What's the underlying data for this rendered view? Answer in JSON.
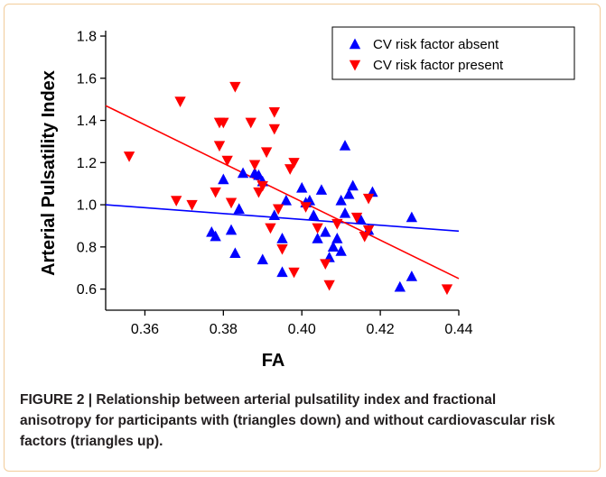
{
  "chart_data": {
    "type": "scatter",
    "xlabel": "FA",
    "ylabel": "Arterial Pulsatility Index",
    "xlim": [
      0.35,
      0.44
    ],
    "ylim": [
      0.5,
      1.8
    ],
    "xticks": [
      0.36,
      0.38,
      0.4,
      0.42,
      0.44
    ],
    "xtick_labels": [
      "0.36",
      "0.38",
      "0.40",
      "0.42",
      "0.44"
    ],
    "yticks": [
      0.6,
      0.8,
      1.0,
      1.2,
      1.4,
      1.6,
      1.8
    ],
    "ytick_labels": [
      "0.6",
      "0.8",
      "1.0",
      "1.2",
      "1.4",
      "1.6",
      "1.8"
    ],
    "grid": false,
    "legend_position": "top-right",
    "series": [
      {
        "name": "CV risk factor absent",
        "marker": "triangle-up",
        "color": "#0000ff",
        "trendline": {
          "x": [
            0.35,
            0.44
          ],
          "y": [
            1.0,
            0.875
          ]
        },
        "points": [
          [
            0.377,
            0.87
          ],
          [
            0.378,
            0.85
          ],
          [
            0.38,
            1.12
          ],
          [
            0.382,
            0.88
          ],
          [
            0.383,
            0.77
          ],
          [
            0.384,
            0.98
          ],
          [
            0.385,
            1.15
          ],
          [
            0.388,
            1.15
          ],
          [
            0.389,
            1.14
          ],
          [
            0.39,
            1.11
          ],
          [
            0.39,
            0.74
          ],
          [
            0.393,
            0.95
          ],
          [
            0.395,
            0.84
          ],
          [
            0.396,
            1.02
          ],
          [
            0.395,
            0.68
          ],
          [
            0.4,
            1.08
          ],
          [
            0.401,
            1.01
          ],
          [
            0.402,
            1.02
          ],
          [
            0.403,
            0.95
          ],
          [
            0.404,
            0.84
          ],
          [
            0.405,
            1.07
          ],
          [
            0.406,
            0.87
          ],
          [
            0.407,
            0.75
          ],
          [
            0.408,
            0.8
          ],
          [
            0.409,
            0.84
          ],
          [
            0.41,
            1.02
          ],
          [
            0.41,
            0.78
          ],
          [
            0.411,
            1.28
          ],
          [
            0.411,
            0.96
          ],
          [
            0.412,
            1.05
          ],
          [
            0.413,
            1.09
          ],
          [
            0.415,
            0.93
          ],
          [
            0.417,
            0.88
          ],
          [
            0.418,
            1.06
          ],
          [
            0.425,
            0.61
          ],
          [
            0.428,
            0.94
          ],
          [
            0.428,
            0.66
          ]
        ]
      },
      {
        "name": "CV risk factor present",
        "marker": "triangle-down",
        "color": "#ff0000",
        "trendline": {
          "x": [
            0.35,
            0.44
          ],
          "y": [
            1.47,
            0.65
          ]
        },
        "points": [
          [
            0.356,
            1.23
          ],
          [
            0.368,
            1.02
          ],
          [
            0.369,
            1.49
          ],
          [
            0.372,
            1.0
          ],
          [
            0.378,
            1.06
          ],
          [
            0.379,
            1.39
          ],
          [
            0.379,
            1.28
          ],
          [
            0.38,
            1.39
          ],
          [
            0.381,
            1.21
          ],
          [
            0.382,
            1.01
          ],
          [
            0.383,
            1.56
          ],
          [
            0.387,
            1.39
          ],
          [
            0.388,
            1.19
          ],
          [
            0.389,
            1.06
          ],
          [
            0.39,
            1.09
          ],
          [
            0.391,
            1.25
          ],
          [
            0.392,
            0.89
          ],
          [
            0.393,
            1.44
          ],
          [
            0.393,
            1.36
          ],
          [
            0.394,
            0.98
          ],
          [
            0.395,
            0.79
          ],
          [
            0.397,
            1.17
          ],
          [
            0.398,
            1.2
          ],
          [
            0.398,
            0.68
          ],
          [
            0.401,
            0.99
          ],
          [
            0.404,
            0.89
          ],
          [
            0.406,
            0.72
          ],
          [
            0.407,
            0.62
          ],
          [
            0.409,
            0.91
          ],
          [
            0.414,
            0.94
          ],
          [
            0.416,
            0.85
          ],
          [
            0.417,
            1.03
          ],
          [
            0.417,
            0.88
          ],
          [
            0.437,
            0.6
          ]
        ]
      }
    ]
  },
  "caption": {
    "text": "FIGURE 2 | Relationship between arterial pulsatility index and fractional anisotropy for participants with (triangles down) and without cardiovascular risk factors (triangles up)."
  }
}
